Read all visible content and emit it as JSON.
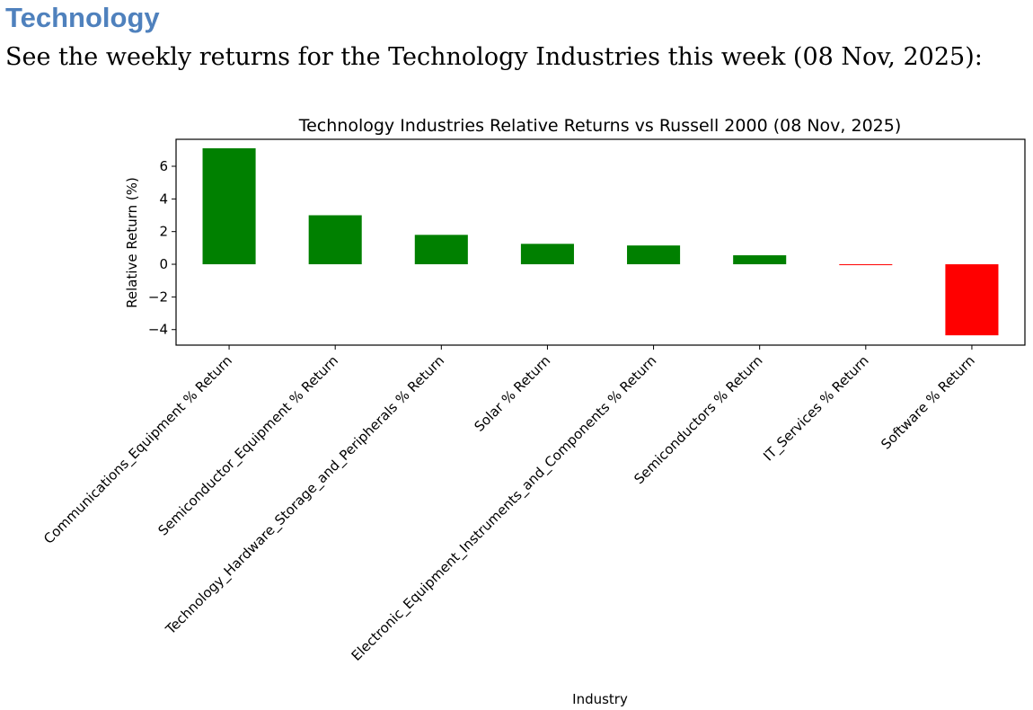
{
  "heading": "Technology",
  "intro": "See the weekly returns for the Technology Industries this week (08 Nov, 2025):",
  "chart_data": {
    "type": "bar",
    "title": "Technology Industries Relative Returns vs Russell 2000 (08 Nov, 2025)",
    "xlabel": "Industry",
    "ylabel": "Relative Return (%)",
    "categories": [
      "Communications_Equipment % Return",
      "Semiconductor_Equipment % Return",
      "Technology_Hardware_Storage_and_Peripherals % Return",
      "Solar % Return",
      "Electronic_Equipment_Instruments_and_Components % Return",
      "Semiconductors % Return",
      "IT_Services % Return",
      "Software % Return"
    ],
    "values": [
      7.1,
      3.0,
      1.8,
      1.25,
      1.15,
      0.55,
      -0.05,
      -4.35
    ],
    "ylim": [
      -4.95,
      7.65
    ],
    "yticks": [
      -4,
      -2,
      0,
      2,
      4,
      6
    ],
    "ytick_labels": [
      "−4",
      "−2",
      "0",
      "2",
      "4",
      "6"
    ],
    "colors": {
      "positive": "#008000",
      "negative": "#ff0000"
    },
    "grid": false,
    "legend": "none"
  }
}
